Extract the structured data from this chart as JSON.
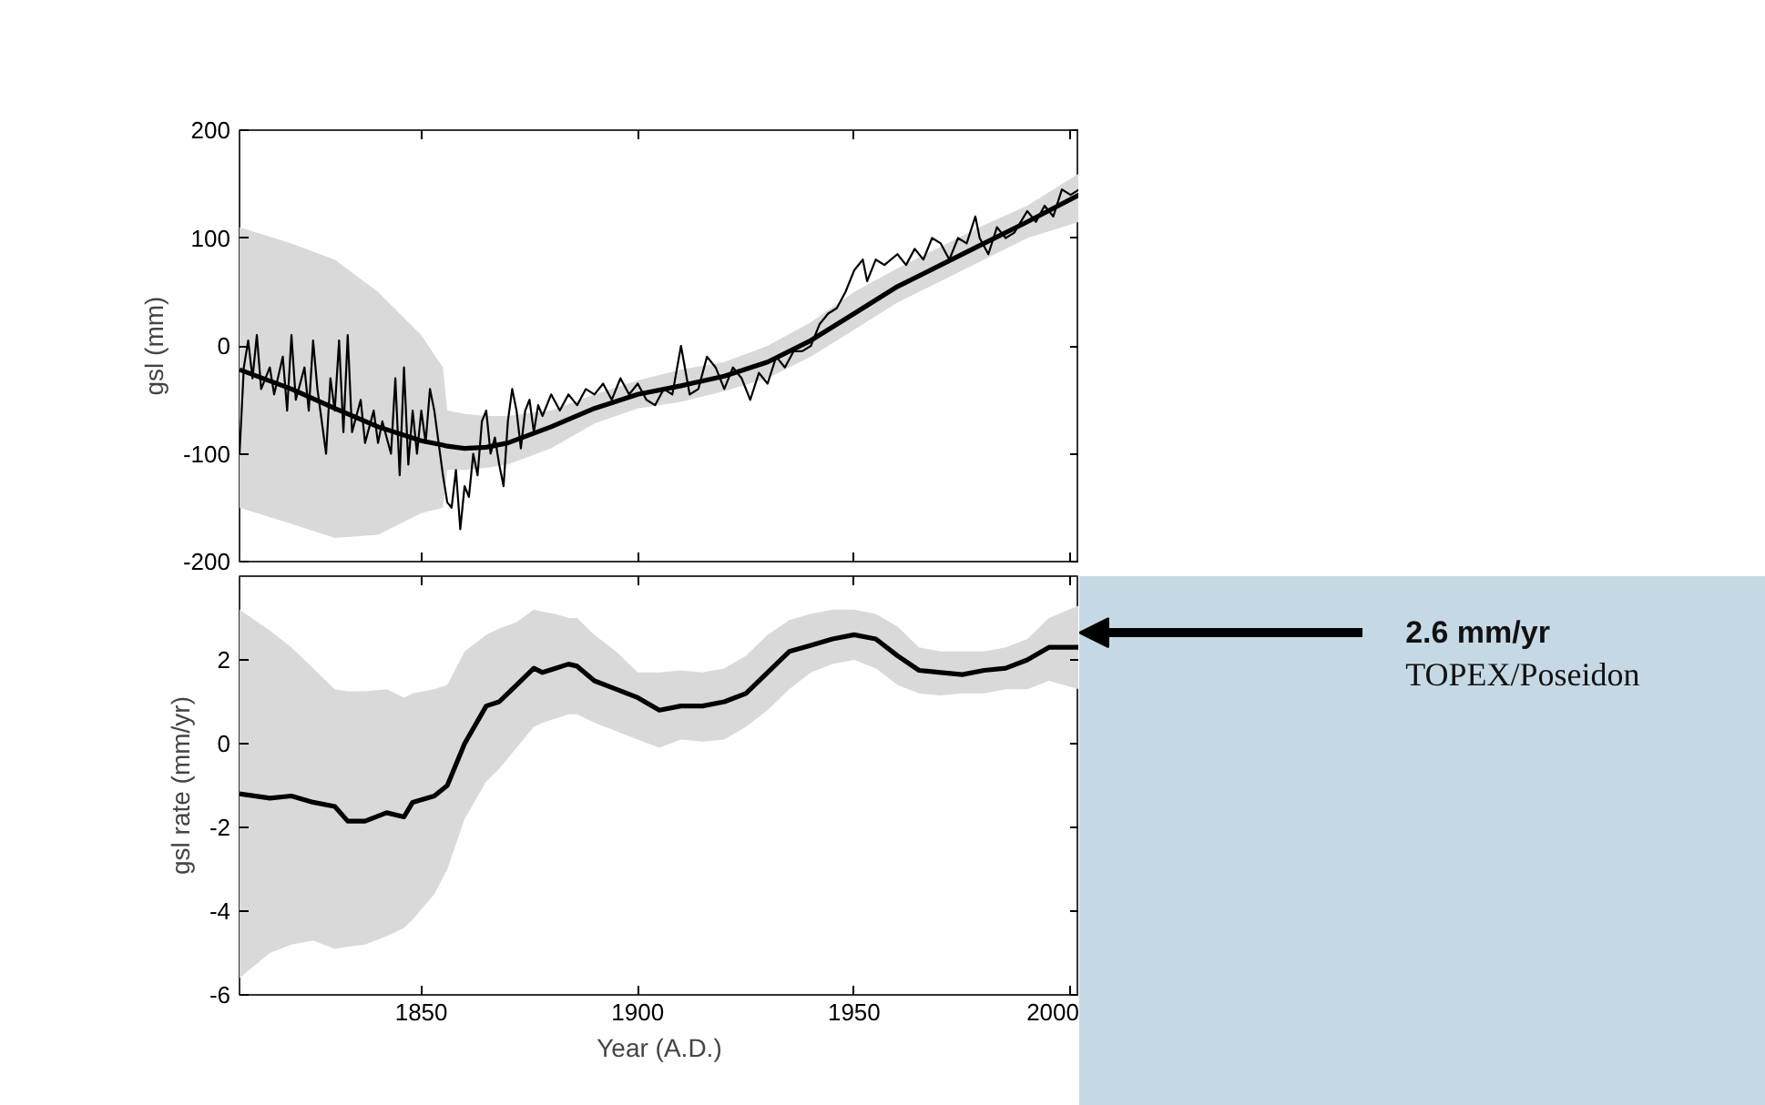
{
  "chart_data": [
    {
      "type": "line",
      "ylabel": "gsl (mm)",
      "xlim": [
        1808,
        2002
      ],
      "xticks": [
        {
          "value": 1850,
          "label": null
        },
        {
          "value": 1900,
          "label": null
        },
        {
          "value": 1950,
          "label": null
        },
        {
          "value": 2000,
          "label": null
        }
      ],
      "ylim": [
        -200,
        200
      ],
      "yticks": [
        -200,
        -100,
        0,
        100,
        200
      ],
      "tick_labels": "y",
      "series": [
        {
          "color": "#000000",
          "x": [
            1808,
            1809,
            1810,
            1811,
            1812,
            1813,
            1815,
            1816,
            1818,
            1819,
            1820,
            1821,
            1823,
            1824,
            1825,
            1826,
            1828,
            1829,
            1830,
            1831,
            1832,
            1833,
            1834,
            1836,
            1837,
            1839,
            1840,
            1841,
            1843,
            1844,
            1845,
            1846,
            1847,
            1848,
            1849,
            1850,
            1851,
            1852,
            1853,
            1854,
            1855,
            1856,
            1857,
            1858,
            1859,
            1860,
            1861,
            1862,
            1863,
            1864,
            1865,
            1866,
            1867,
            1868,
            1869,
            1870,
            1871,
            1872,
            1873,
            1874,
            1875,
            1876,
            1877,
            1878,
            1880,
            1882,
            1884,
            1886,
            1888,
            1890,
            1892,
            1894,
            1896,
            1898,
            1900,
            1902,
            1904,
            1906,
            1908,
            1910,
            1912,
            1914,
            1916,
            1918,
            1920,
            1922,
            1924,
            1926,
            1928,
            1930,
            1932,
            1934,
            1936,
            1938,
            1940,
            1942,
            1944,
            1946,
            1948,
            1950,
            1952,
            1953,
            1955,
            1957,
            1960,
            1962,
            1964,
            1966,
            1968,
            1970,
            1972,
            1974,
            1976,
            1978,
            1979,
            1981,
            1983,
            1985,
            1987,
            1990,
            1992,
            1994,
            1996,
            1998,
            2000,
            2002
          ],
          "values": [
            -100,
            -20,
            5,
            -30,
            10,
            -40,
            -20,
            -45,
            -10,
            -60,
            10,
            -50,
            -20,
            -60,
            5,
            -40,
            -100,
            -30,
            -60,
            5,
            -80,
            10,
            -80,
            -50,
            -90,
            -60,
            -90,
            -70,
            -100,
            -30,
            -120,
            -20,
            -110,
            -60,
            -100,
            -60,
            -90,
            -40,
            -60,
            -90,
            -120,
            -145,
            -150,
            -115,
            -170,
            -130,
            -140,
            -100,
            -120,
            -70,
            -60,
            -100,
            -85,
            -110,
            -130,
            -70,
            -40,
            -60,
            -95,
            -60,
            -50,
            -80,
            -55,
            -65,
            -45,
            -60,
            -45,
            -55,
            -40,
            -45,
            -35,
            -50,
            -30,
            -45,
            -35,
            -50,
            -55,
            -40,
            -45,
            0,
            -45,
            -40,
            -10,
            -20,
            -40,
            -20,
            -30,
            -50,
            -25,
            -35,
            -10,
            -20,
            -5,
            -5,
            0,
            20,
            30,
            35,
            50,
            70,
            80,
            60,
            80,
            75,
            85,
            75,
            90,
            80,
            100,
            95,
            80,
            100,
            95,
            120,
            100,
            85,
            110,
            100,
            105,
            125,
            115,
            130,
            120,
            145,
            140,
            145
          ]
        },
        {
          "color": "#000000",
          "x": [
            1808,
            1820,
            1830,
            1840,
            1850,
            1855,
            1856,
            1860,
            1865,
            1870,
            1880,
            1890,
            1900,
            1910,
            1920,
            1930,
            1940,
            1950,
            1960,
            1970,
            1980,
            1990,
            2002
          ],
          "values": [
            -22,
            -40,
            -58,
            -75,
            -88,
            -92,
            -93,
            -95,
            -94,
            -90,
            -75,
            -58,
            -45,
            -37,
            -28,
            -15,
            5,
            30,
            55,
            75,
            95,
            115,
            140
          ],
          "upper": [
            110,
            95,
            80,
            50,
            10,
            -20,
            -60,
            -63,
            -65,
            -65,
            -60,
            -45,
            -32,
            -22,
            -15,
            0,
            22,
            50,
            72,
            92,
            112,
            130,
            160
          ],
          "lower": [
            -150,
            -165,
            -178,
            -175,
            -155,
            -150,
            -115,
            -115,
            -113,
            -110,
            -95,
            -72,
            -58,
            -52,
            -42,
            -30,
            -10,
            15,
            40,
            60,
            80,
            100,
            115
          ]
        }
      ]
    },
    {
      "type": "line",
      "ylabel": "gsl rate (mm/yr)",
      "xlabel": "Year (A.D.)",
      "xlim": [
        1808,
        2002
      ],
      "xticks": [
        1850,
        1900,
        1950,
        2000
      ],
      "ylim": [
        -6,
        4
      ],
      "yticks": [
        -6,
        -4,
        -2,
        0,
        2
      ],
      "annotations": [
        "2.6 mm/yr",
        "TOPEX/Poseidon"
      ],
      "series": [
        {
          "color": "#000000",
          "x": [
            1808,
            1815,
            1820,
            1825,
            1830,
            1833,
            1837,
            1842,
            1846,
            1848,
            1853,
            1856,
            1860,
            1865,
            1868,
            1872,
            1876,
            1878,
            1881,
            1884,
            1886,
            1890,
            1895,
            1900,
            1905,
            1910,
            1915,
            1920,
            1925,
            1930,
            1935,
            1940,
            1945,
            1950,
            1955,
            1960,
            1965,
            1970,
            1975,
            1980,
            1985,
            1990,
            1995,
            2002
          ],
          "values": [
            -1.2,
            -1.3,
            -1.25,
            -1.4,
            -1.5,
            -1.85,
            -1.85,
            -1.65,
            -1.75,
            -1.4,
            -1.25,
            -1.0,
            0.0,
            0.9,
            1.0,
            1.4,
            1.8,
            1.7,
            1.8,
            1.9,
            1.85,
            1.5,
            1.3,
            1.1,
            0.8,
            0.9,
            0.9,
            1.0,
            1.2,
            1.7,
            2.2,
            2.35,
            2.5,
            2.6,
            2.5,
            2.1,
            1.75,
            1.7,
            1.65,
            1.75,
            1.8,
            2.0,
            2.3,
            2.3
          ],
          "upper": [
            3.2,
            2.7,
            2.3,
            1.8,
            1.3,
            1.25,
            1.25,
            1.3,
            1.1,
            1.2,
            1.3,
            1.4,
            2.2,
            2.6,
            2.75,
            2.9,
            3.2,
            3.15,
            3.1,
            3.0,
            3.0,
            2.6,
            2.2,
            1.7,
            1.7,
            1.75,
            1.7,
            1.8,
            2.1,
            2.6,
            2.95,
            3.1,
            3.2,
            3.2,
            3.1,
            2.8,
            2.3,
            2.2,
            2.2,
            2.2,
            2.3,
            2.5,
            3.0,
            3.3
          ],
          "lower": [
            -5.6,
            -5.0,
            -4.8,
            -4.7,
            -4.9,
            -4.85,
            -4.8,
            -4.6,
            -4.4,
            -4.2,
            -3.6,
            -3.0,
            -1.8,
            -0.9,
            -0.6,
            -0.1,
            0.4,
            0.5,
            0.6,
            0.7,
            0.7,
            0.5,
            0.3,
            0.1,
            -0.1,
            0.1,
            0.05,
            0.1,
            0.4,
            0.8,
            1.3,
            1.7,
            1.9,
            2.0,
            1.8,
            1.4,
            1.2,
            1.15,
            1.2,
            1.2,
            1.3,
            1.3,
            1.5,
            1.3
          ]
        }
      ]
    }
  ]
}
